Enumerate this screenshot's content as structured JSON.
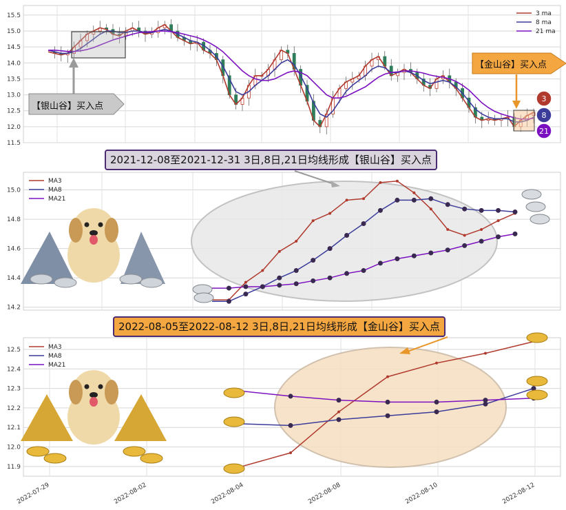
{
  "colors": {
    "ma3": "#b03a2e",
    "ma8": "#3b3b9a",
    "ma21": "#7b10c0",
    "up": "#c0392b",
    "down": "#2e7d5b",
    "silver_ellipse": "#e8e8e8",
    "gold_ellipse": "#f6dfc0",
    "silver_banner": "#d9d4de",
    "gold_banner": "#f4a641"
  },
  "annotations": {
    "silver_arrow": "【银山谷】买入点",
    "gold_arrow": "【金山谷】买入点",
    "silver_banner": "2021-12-08至2021-12-31 3日,8日,21日均线形成【银山谷】买入点",
    "gold_banner": "2022-08-05至2022-08-12 3日,8日,21日均线形成【金山谷】买入点",
    "badges": [
      "3",
      "8",
      "21"
    ]
  },
  "chart_data": [
    {
      "type": "candlestick",
      "title": "",
      "ylim": [
        11.5,
        15.8
      ],
      "yticks": [
        "11.5",
        "12.0",
        "12.5",
        "13.0",
        "13.5",
        "14.0",
        "14.5",
        "15.0",
        "15.5"
      ],
      "legend": {
        "position": "top-right",
        "entries": [
          "3 ma",
          "8 ma",
          "21 ma"
        ]
      },
      "grid": true,
      "note": "daily candles with 3/8/21 moving averages over ~9 months",
      "series": [
        {
          "name": "3 ma",
          "values": [
            14.35,
            14.3,
            14.25,
            14.3,
            14.5,
            14.7,
            14.9,
            15.0,
            15.1,
            15.05,
            14.9,
            14.85,
            15.0,
            15.1,
            15.0,
            14.9,
            14.95,
            15.1,
            15.2,
            15.0,
            14.8,
            14.7,
            14.6,
            14.65,
            14.4,
            14.3,
            14.1,
            13.6,
            13.0,
            12.7,
            12.9,
            13.3,
            13.6,
            13.6,
            13.8,
            14.1,
            14.4,
            14.3,
            13.8,
            13.3,
            12.8,
            12.2,
            12.0,
            12.4,
            12.9,
            13.2,
            13.4,
            13.5,
            13.6,
            13.9,
            14.1,
            14.2,
            13.9,
            13.6,
            13.7,
            13.8,
            13.7,
            13.5,
            13.3,
            13.2,
            13.5,
            13.6,
            13.4,
            13.2,
            12.9,
            12.6,
            12.3,
            12.2,
            12.25,
            12.2,
            12.25,
            12.3,
            12.0,
            12.2,
            12.35,
            12.45
          ]
        },
        {
          "name": "8 ma",
          "values": [
            14.4,
            14.35,
            14.3,
            14.3,
            14.35,
            14.45,
            14.6,
            14.75,
            14.9,
            15.0,
            15.0,
            14.95,
            14.95,
            15.0,
            15.0,
            14.95,
            14.95,
            15.0,
            15.05,
            15.0,
            14.9,
            14.8,
            14.7,
            14.65,
            14.55,
            14.4,
            14.2,
            13.9,
            13.5,
            13.1,
            13.0,
            13.1,
            13.3,
            13.45,
            13.6,
            13.8,
            14.0,
            14.1,
            13.95,
            13.6,
            13.2,
            12.75,
            12.4,
            12.3,
            12.5,
            12.8,
            13.1,
            13.3,
            13.45,
            13.6,
            13.8,
            13.9,
            13.85,
            13.7,
            13.7,
            13.75,
            13.7,
            13.6,
            13.45,
            13.35,
            13.4,
            13.45,
            13.4,
            13.25,
            13.05,
            12.8,
            12.55,
            12.4,
            12.3,
            12.25,
            12.25,
            12.25,
            12.15,
            12.15,
            12.2,
            12.3
          ]
        },
        {
          "name": "21 ma",
          "values": [
            14.4,
            14.4,
            14.38,
            14.36,
            14.36,
            14.38,
            14.42,
            14.48,
            14.56,
            14.64,
            14.72,
            14.78,
            14.84,
            14.9,
            14.95,
            14.97,
            14.98,
            15.0,
            15.0,
            14.98,
            14.95,
            14.9,
            14.85,
            14.8,
            14.72,
            14.62,
            14.5,
            14.35,
            14.15,
            13.95,
            13.75,
            13.6,
            13.5,
            13.45,
            13.45,
            13.5,
            13.6,
            13.7,
            13.75,
            13.7,
            13.6,
            13.4,
            13.2,
            13.0,
            12.9,
            12.9,
            12.95,
            13.05,
            13.15,
            13.25,
            13.4,
            13.55,
            13.65,
            13.7,
            13.72,
            13.75,
            13.75,
            13.72,
            13.68,
            13.62,
            13.58,
            13.55,
            13.5,
            13.42,
            13.3,
            13.15,
            12.95,
            12.75,
            12.6,
            12.48,
            12.4,
            12.34,
            12.28,
            12.24,
            12.24,
            12.26
          ]
        }
      ]
    },
    {
      "type": "line",
      "title": "",
      "ylim": [
        14.18,
        15.12
      ],
      "yticks": [
        "14.2",
        "14.4",
        "14.6",
        "14.8",
        "15.0"
      ],
      "legend": {
        "position": "top-left",
        "entries": [
          "MA3",
          "MA8",
          "MA21"
        ]
      },
      "grid": true,
      "series": [
        {
          "name": "MA3",
          "values": [
            14.25,
            14.25,
            14.37,
            14.45,
            14.58,
            14.65,
            14.79,
            14.84,
            14.93,
            14.94,
            15.05,
            15.06,
            14.98,
            14.87,
            14.73,
            14.69,
            14.73,
            14.79,
            14.84
          ]
        },
        {
          "name": "MA8",
          "values": [
            14.24,
            14.24,
            14.29,
            14.34,
            14.4,
            14.45,
            14.52,
            14.6,
            14.69,
            14.77,
            14.86,
            14.93,
            14.93,
            14.94,
            14.9,
            14.87,
            14.86,
            14.86,
            14.85
          ]
        },
        {
          "name": "MA21",
          "values": [
            14.33,
            14.33,
            14.34,
            14.34,
            14.35,
            14.36,
            14.38,
            14.4,
            14.43,
            14.45,
            14.5,
            14.53,
            14.55,
            14.57,
            14.59,
            14.62,
            14.65,
            14.68,
            14.7
          ]
        }
      ]
    },
    {
      "type": "line",
      "title": "",
      "x": [
        "2022-07-29",
        "2022-08-01",
        "2022-08-02",
        "2022-08-03",
        "2022-08-04",
        "2022-08-05",
        "2022-08-08",
        "2022-08-09",
        "2022-08-10",
        "2022-08-11",
        "2022-08-12"
      ],
      "xticks": [
        "2022-07-29",
        "2022-08-02",
        "2022-08-04",
        "2022-08-08",
        "2022-08-10",
        "2022-08-12"
      ],
      "ylim": [
        11.85,
        12.56
      ],
      "yticks": [
        "11.9",
        "12.0",
        "12.1",
        "12.2",
        "12.3",
        "12.4",
        "12.5"
      ],
      "legend": {
        "position": "top-left",
        "entries": [
          "MA3",
          "MA8",
          "MA21"
        ]
      },
      "grid": true,
      "series": [
        {
          "name": "MA3",
          "values": [
            null,
            null,
            null,
            null,
            11.89,
            11.97,
            12.18,
            12.36,
            12.43,
            12.48,
            12.54
          ]
        },
        {
          "name": "MA8",
          "values": [
            null,
            null,
            null,
            null,
            12.12,
            12.11,
            12.14,
            12.16,
            12.18,
            12.22,
            12.3
          ]
        },
        {
          "name": "MA21",
          "values": [
            null,
            null,
            null,
            null,
            12.29,
            12.26,
            12.24,
            12.23,
            12.23,
            12.24,
            12.25
          ]
        }
      ]
    }
  ]
}
